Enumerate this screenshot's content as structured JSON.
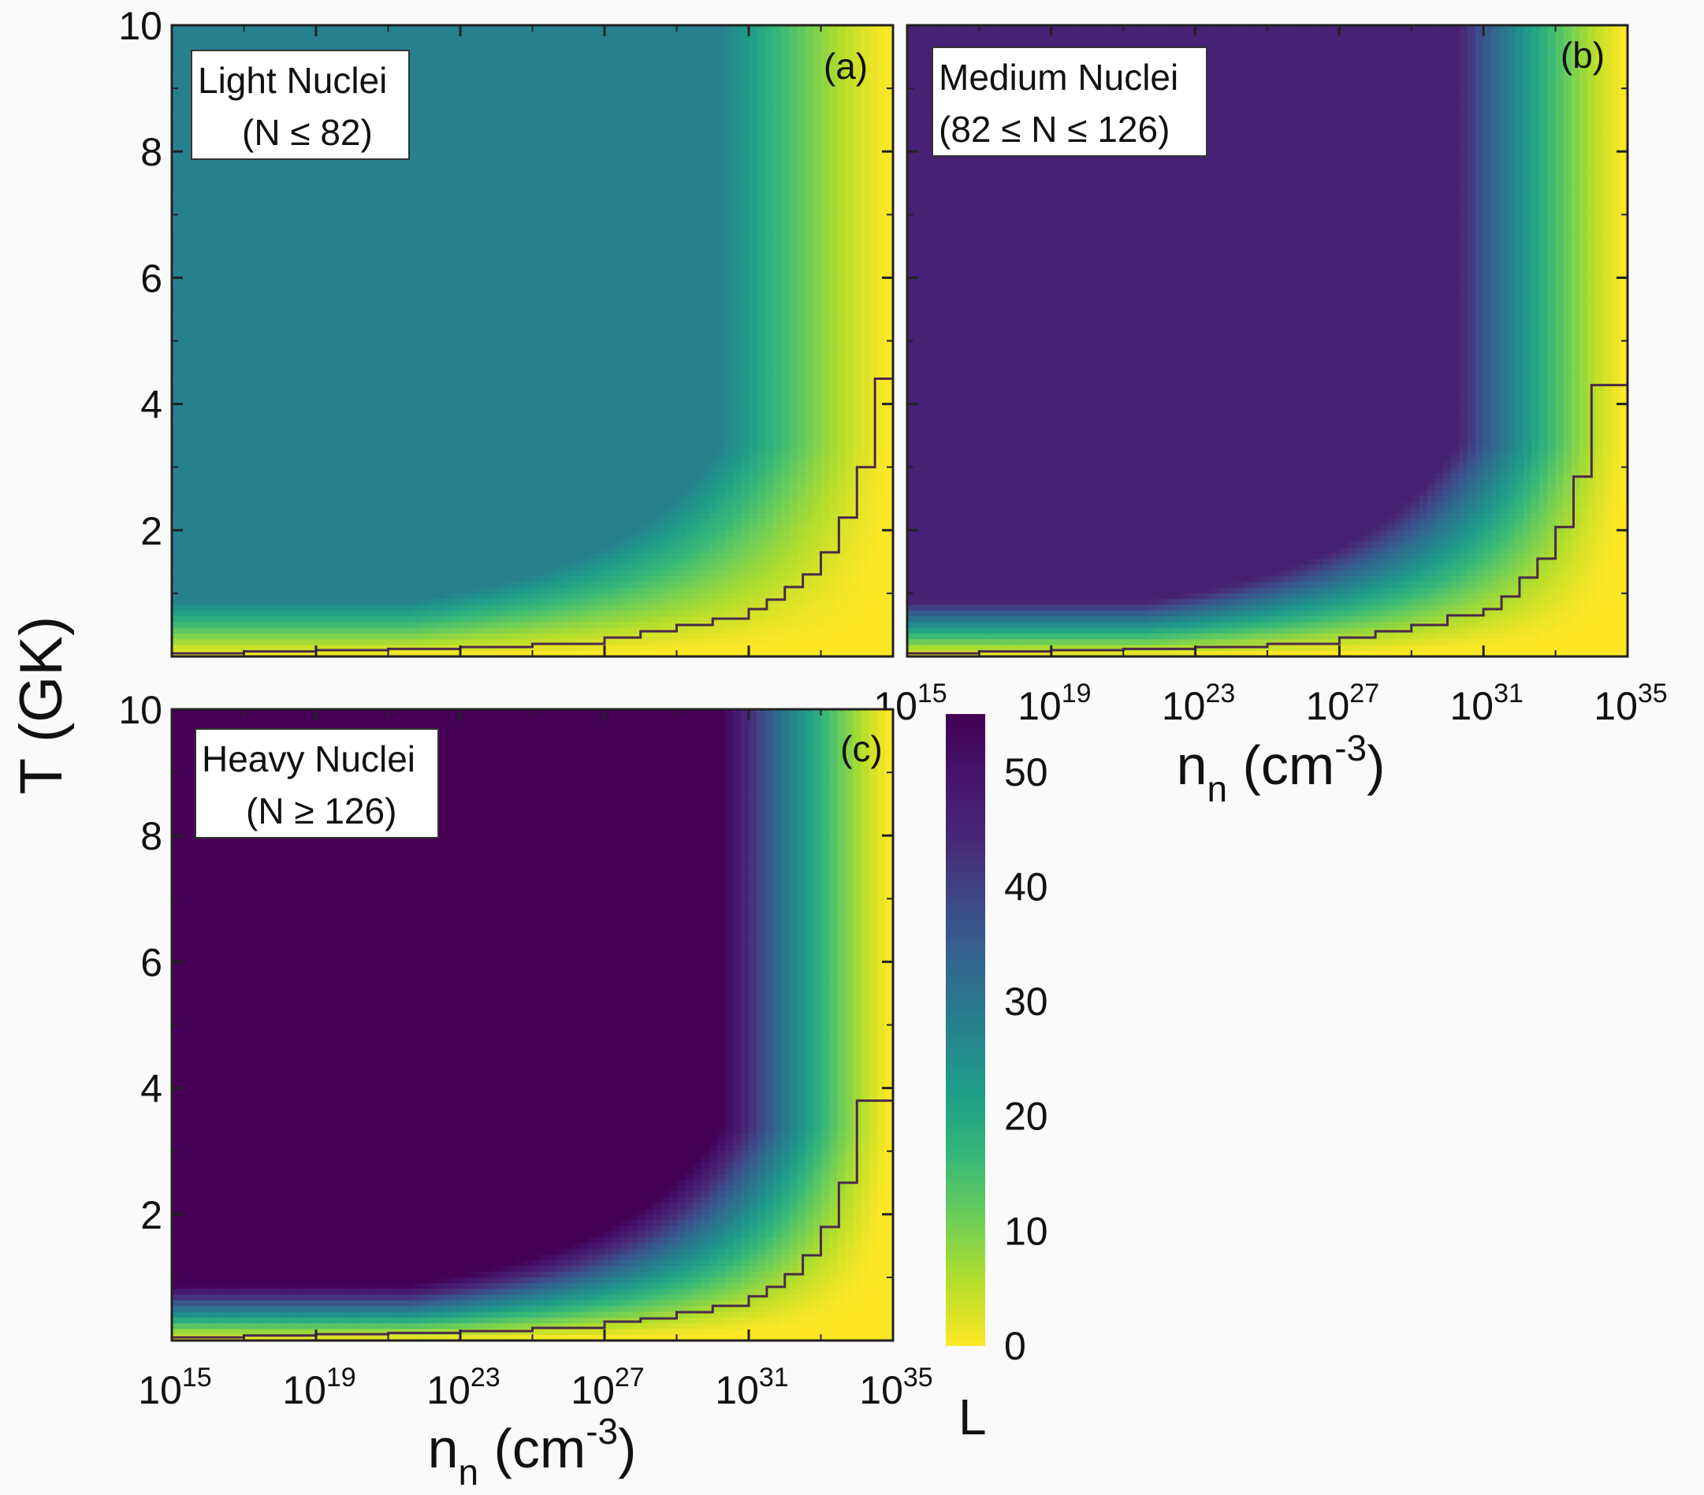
{
  "figure": {
    "shared_ylabel": "T (GK)",
    "colorbar": {
      "label": "L",
      "ticks": [
        "0",
        "10",
        "20",
        "30",
        "40",
        "50"
      ],
      "min": 0,
      "max": 55
    }
  },
  "chart_data": [
    {
      "type": "heatmap",
      "panel": "(a)",
      "legend_box": [
        "Light Nuclei",
        "(N ≤ 82)"
      ],
      "x_scale": "log",
      "xlim": [
        1000000000000000.0,
        1e+35
      ],
      "ylim": [
        0,
        10
      ],
      "yticks": [
        "2",
        "4",
        "6",
        "8",
        "10"
      ],
      "xticks": [],
      "xlabel": "",
      "plateau_value": 28,
      "steepness": 0.06,
      "step_boundary": {
        "log10_n": [
          15,
          17,
          19,
          21,
          23,
          25,
          27,
          28,
          29,
          30,
          31,
          31.5,
          32,
          32.5,
          33,
          33.5,
          34,
          34.5,
          35
        ],
        "T_GK": [
          0.05,
          0.08,
          0.1,
          0.12,
          0.15,
          0.2,
          0.3,
          0.4,
          0.5,
          0.6,
          0.75,
          0.9,
          1.1,
          1.3,
          1.65,
          2.2,
          3.0,
          4.4,
          4.4
        ]
      }
    },
    {
      "type": "heatmap",
      "panel": "(b)",
      "legend_box": [
        "Medium Nuclei",
        "(82 ≤ N ≤ 126)"
      ],
      "x_scale": "log",
      "xlim": [
        1000000000000000.0,
        1e+35
      ],
      "ylim": [
        0,
        10
      ],
      "yticks": [],
      "xticks": [
        15,
        19,
        23,
        27,
        31,
        35
      ],
      "xlabel": "n",
      "xlabel_sub": "n",
      "xlabel_unit": "(cm",
      "xlabel_sup": "-3",
      "xlabel_close": ")",
      "plateau_value": 46,
      "steepness": 0.13,
      "step_boundary": {
        "log10_n": [
          15,
          17,
          19,
          21,
          23,
          25,
          27,
          28,
          29,
          30,
          31,
          31.5,
          32,
          32.5,
          33,
          33.5,
          34,
          34.5,
          35
        ],
        "T_GK": [
          0.05,
          0.08,
          0.1,
          0.12,
          0.15,
          0.2,
          0.3,
          0.4,
          0.5,
          0.65,
          0.75,
          0.95,
          1.25,
          1.55,
          2.05,
          2.85,
          4.3,
          4.3,
          4.3
        ]
      }
    },
    {
      "type": "heatmap",
      "panel": "(c)",
      "legend_box": [
        "Heavy Nuclei",
        "(N ≥ 126)"
      ],
      "x_scale": "log",
      "xlim": [
        1000000000000000.0,
        1e+35
      ],
      "ylim": [
        0,
        10
      ],
      "yticks": [
        "2",
        "4",
        "6",
        "8",
        "10"
      ],
      "xticks": [
        15,
        19,
        23,
        27,
        31,
        35
      ],
      "xlabel": "n",
      "xlabel_sub": "n",
      "xlabel_unit": "(cm",
      "xlabel_sup": "-3",
      "xlabel_close": ")",
      "plateau_value": 55,
      "steepness": 0.15,
      "step_boundary": {
        "log10_n": [
          15,
          17,
          19,
          21,
          23,
          25,
          27,
          28,
          29,
          30,
          31,
          31.5,
          32,
          32.5,
          33,
          33.5,
          34,
          34.5,
          35
        ],
        "T_GK": [
          0.05,
          0.08,
          0.1,
          0.12,
          0.15,
          0.2,
          0.3,
          0.35,
          0.45,
          0.55,
          0.7,
          0.85,
          1.05,
          1.35,
          1.8,
          2.5,
          3.8,
          3.8,
          3.8
        ]
      }
    }
  ]
}
